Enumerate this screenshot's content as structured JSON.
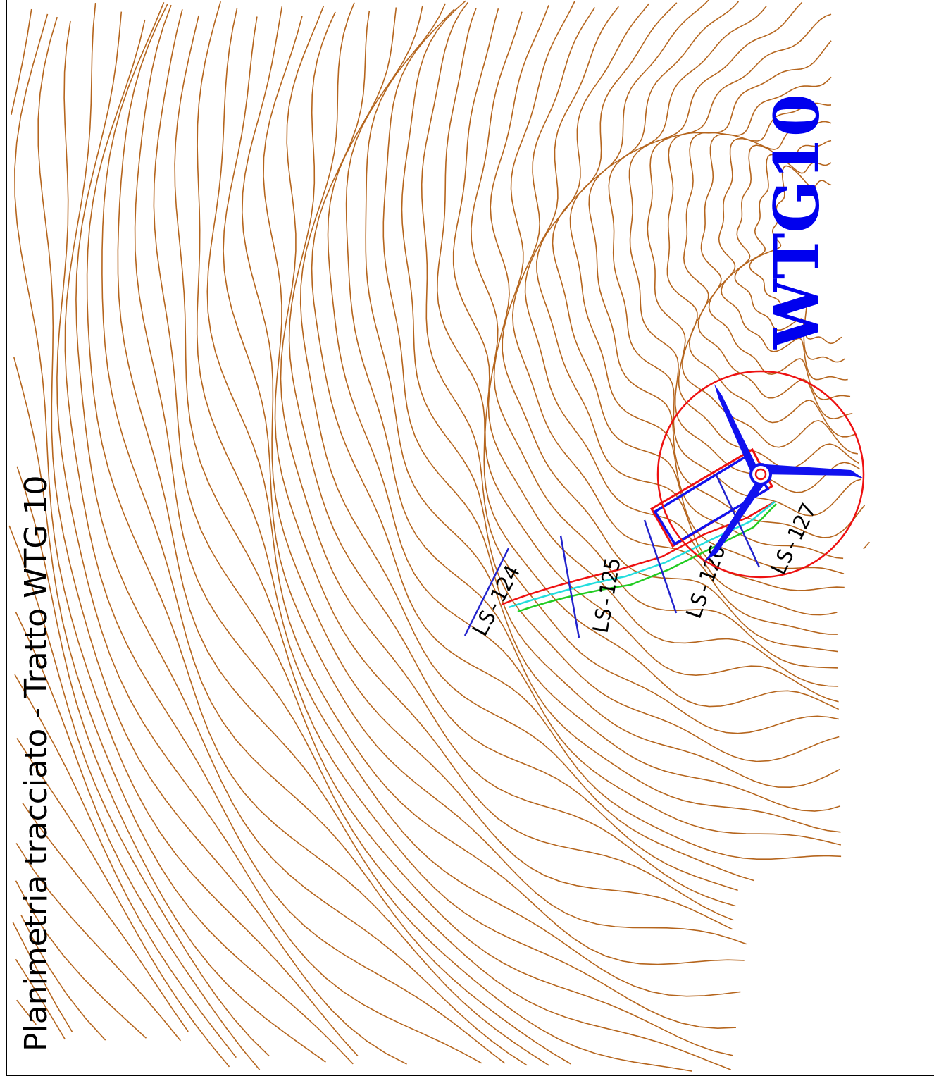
{
  "title": "Planimetria tracciato - Tratto WTG 10",
  "turbine": {
    "name": "WTG10",
    "color": "#0000ee"
  },
  "sections": [
    {
      "id": "s124",
      "label": "LS-124"
    },
    {
      "id": "s125",
      "label": "LS-125"
    },
    {
      "id": "s126",
      "label": "LS-126"
    },
    {
      "id": "s127",
      "label": "LS-127"
    }
  ],
  "colors": {
    "contour": "#b5651d",
    "frame": "#000000",
    "buffer_circle": "#ee1111",
    "route_red": "#ee1111",
    "route_green": "#22cc22",
    "route_cyan": "#22dddd",
    "route_blue": "#1111ee",
    "section_lines": "#2222cc"
  },
  "icons": {
    "turbine": "wind-turbine-icon"
  }
}
